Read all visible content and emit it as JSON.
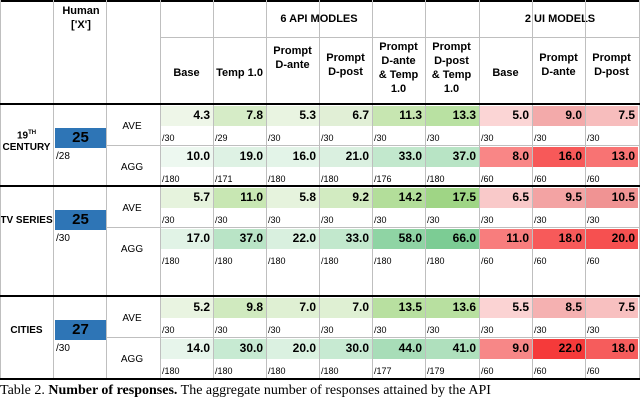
{
  "headers": {
    "human": "Human\n['X']",
    "api_group": "6 API MODLES",
    "ui_group": "2 UI MODELS",
    "api_cols": [
      "Base",
      "Temp 1.0",
      "Prompt\nD-ante",
      "Prompt\nD-post",
      "Prompt\nD-ante\n& Temp\n1.0",
      "Prompt\nD-post\n& Temp\n1.0"
    ],
    "ui_cols": [
      "Base",
      "Prompt\nD-ante",
      "Prompt\nD-post"
    ]
  },
  "sections": [
    {
      "label_main": "19",
      "label_sup": "TH",
      "label_rest": "CENTURY",
      "human_value": "25",
      "human_denominator": "/28",
      "rows": [
        {
          "metric": "AVE",
          "values": [
            "4.3",
            "7.8",
            "5.3",
            "6.7",
            "11.3",
            "13.3",
            "5.0",
            "9.0",
            "7.5"
          ],
          "denoms": [
            "/30",
            "/29",
            "/30",
            "/30",
            "/30",
            "/30",
            "/30",
            "/30",
            "/30"
          ],
          "colors": [
            "#eef6e8",
            "#d6ecc7",
            "#e9f4e1",
            "#e1efd6",
            "#c7e6b1",
            "#b9e1a2",
            "#fbd5d5",
            "#f3aaaa",
            "#f7bdbd"
          ]
        },
        {
          "metric": "AGG",
          "values": [
            "10.0",
            "19.0",
            "16.0",
            "21.0",
            "33.0",
            "37.0",
            "8.0",
            "16.0",
            "13.0"
          ],
          "denoms": [
            "/180",
            "/171",
            "/180",
            "/180",
            "/176",
            "/180",
            "/60",
            "/60",
            "/60"
          ],
          "colors": [
            "#edf8f0",
            "#def2e4",
            "#e3f4e8",
            "#daf0e0",
            "#c2e8cd",
            "#b8e4c5",
            "#f98686",
            "#f75959",
            "#f87373"
          ]
        }
      ]
    },
    {
      "label_main": "TV SERIES",
      "label_sup": "",
      "label_rest": "",
      "human_value": "25",
      "human_denominator": "/30",
      "rows": [
        {
          "metric": "AVE",
          "values": [
            "5.7",
            "11.0",
            "5.8",
            "9.2",
            "14.2",
            "17.5",
            "6.5",
            "9.5",
            "10.5"
          ],
          "denoms": [
            "/30",
            "/30",
            "/30",
            "/30",
            "/30",
            "/30",
            "/30",
            "/30",
            "/30"
          ],
          "colors": [
            "#e6f3dd",
            "#c8e7b3",
            "#e6f3dd",
            "#d2ebc1",
            "#b3de9a",
            "#9fd585",
            "#f9c9c9",
            "#f3a3a3",
            "#f09393"
          ]
        },
        {
          "metric": "AGG",
          "values": [
            "17.0",
            "37.0",
            "22.0",
            "33.0",
            "58.0",
            "66.0",
            "11.0",
            "18.0",
            "20.0"
          ],
          "denoms": [
            "/180",
            "/180",
            "/180",
            "/180",
            "/180",
            "/180",
            "/60",
            "/60",
            "/60"
          ],
          "colors": [
            "#e1f3e6",
            "#b9e4c6",
            "#d9f0df",
            "#c2e8cd",
            "#8fd4a4",
            "#7ccc94",
            "#f87d7d",
            "#f75a5a",
            "#f65050"
          ]
        }
      ]
    },
    {
      "label_main": "CITIES",
      "label_sup": "",
      "label_rest": "",
      "human_value": "27",
      "human_denominator": "/30",
      "rows": [
        {
          "metric": "AVE",
          "values": [
            "5.2",
            "9.8",
            "7.0",
            "7.0",
            "13.5",
            "13.6",
            "5.5",
            "8.5",
            "7.5"
          ],
          "denoms": [
            "/30",
            "/30",
            "/30",
            "/30",
            "/30",
            "/30",
            "/30",
            "/30",
            "/30"
          ],
          "colors": [
            "#e9f4e1",
            "#d0eabf",
            "#dff0d3",
            "#dff0d3",
            "#b8e0a0",
            "#b8e0a0",
            "#fbd3d3",
            "#f5b1b1",
            "#f8c0c0"
          ]
        },
        {
          "metric": "AGG",
          "values": [
            "14.0",
            "30.0",
            "20.0",
            "30.0",
            "44.0",
            "41.0",
            "9.0",
            "22.0",
            "18.0"
          ],
          "denoms": [
            "/180",
            "/180",
            "/180",
            "/180",
            "/177",
            "/179",
            "/60",
            "/60",
            "/60"
          ],
          "colors": [
            "#e7f5eb",
            "#c7ead2",
            "#dbf1e1",
            "#c7ead2",
            "#a8ddb8",
            "#afe0bd",
            "#f78787",
            "#f53a3a",
            "#f65c5c"
          ]
        }
      ]
    }
  ],
  "caption": {
    "label": "Table 2.",
    "bold": "Number of responses.",
    "text": "The aggregate number of responses attained by the API"
  }
}
